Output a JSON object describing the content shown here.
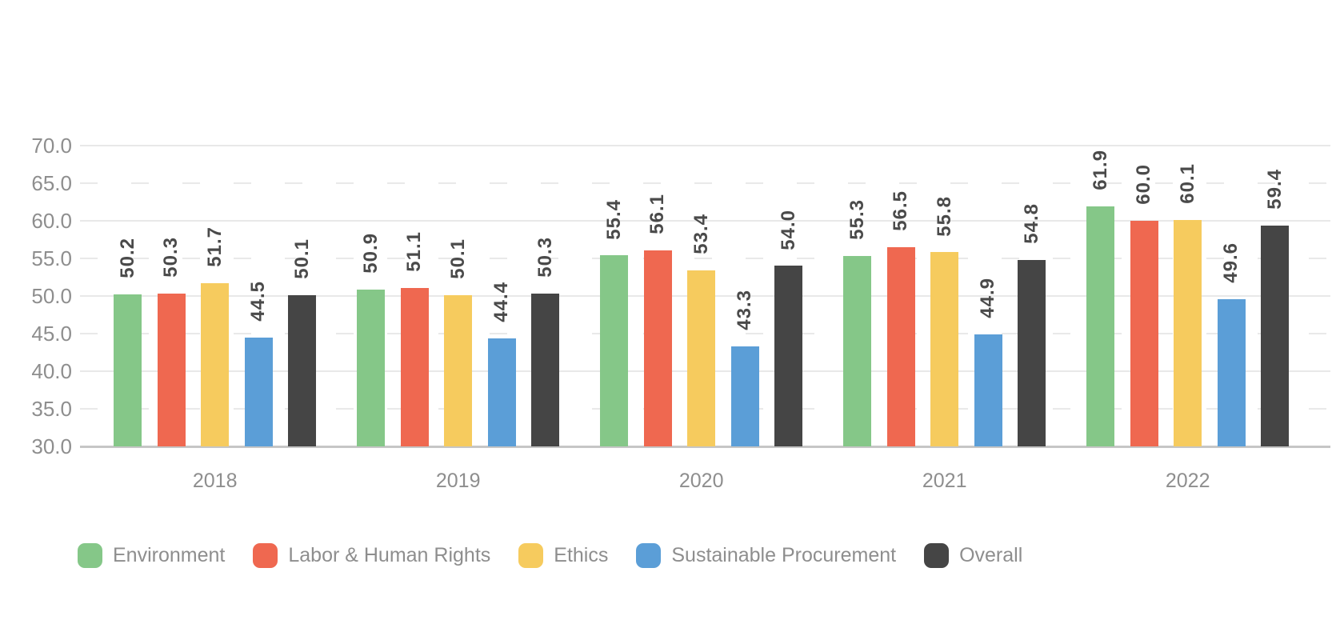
{
  "page": {
    "background_color": "#FFFFFF"
  },
  "chart_data": {
    "type": "bar",
    "title": "",
    "xlabel": "",
    "ylabel": "",
    "categories": [
      "2018",
      "2019",
      "2020",
      "2021",
      "2022"
    ],
    "series": [
      {
        "name": "Environment",
        "color": "#85C788",
        "values": [
          50.2,
          50.9,
          55.4,
          55.3,
          61.9
        ],
        "value_labels": [
          "50.2",
          "50.9",
          "55.4",
          "55.3",
          "61.9"
        ]
      },
      {
        "name": "Labor & Human Rights",
        "color": "#EF6850",
        "values": [
          50.3,
          51.1,
          56.1,
          56.5,
          60.0
        ],
        "value_labels": [
          "50.3",
          "51.1",
          "56.1",
          "56.5",
          "60.0"
        ]
      },
      {
        "name": "Ethics",
        "color": "#F6CB5E",
        "values": [
          51.7,
          50.1,
          53.4,
          55.8,
          60.1
        ],
        "value_labels": [
          "51.7",
          "50.1",
          "53.4",
          "55.8",
          "60.1"
        ]
      },
      {
        "name": "Sustainable Procurement",
        "color": "#5B9ED7",
        "values": [
          44.5,
          44.4,
          43.3,
          44.9,
          49.6
        ],
        "value_labels": [
          "44.5",
          "44.4",
          "43.3",
          "44.9",
          "49.6"
        ]
      },
      {
        "name": "Overall",
        "color": "#454545",
        "values": [
          50.1,
          50.3,
          54.0,
          54.8,
          59.4
        ],
        "value_labels": [
          "50.1",
          "50.3",
          "54.0",
          "54.8",
          "59.4"
        ]
      }
    ],
    "y_axis": {
      "min": 30,
      "max": 70,
      "step": 5,
      "tick_labels": [
        "70.0",
        "65.0",
        "60.0",
        "55.0",
        "50.0",
        "45.0",
        "40.0",
        "35.0",
        "30.0"
      ]
    },
    "grid": {
      "orientation": "horizontal",
      "solid_lines_at": [
        70,
        60,
        50,
        40
      ],
      "dashed_lines_at": [
        65,
        55,
        45,
        35
      ],
      "baseline_at": 30
    },
    "legend": {
      "position": "bottom",
      "items": [
        "Environment",
        "Labor & Human Rights",
        "Ethics",
        "Sustainable Procurement",
        "Overall"
      ]
    },
    "style_colors": {
      "grid_color": "#E8E8E8",
      "baseline_color": "#C6C6C6",
      "axis_text_color": "#8E8E8E",
      "value_label_color": "#4A4A4A"
    }
  }
}
